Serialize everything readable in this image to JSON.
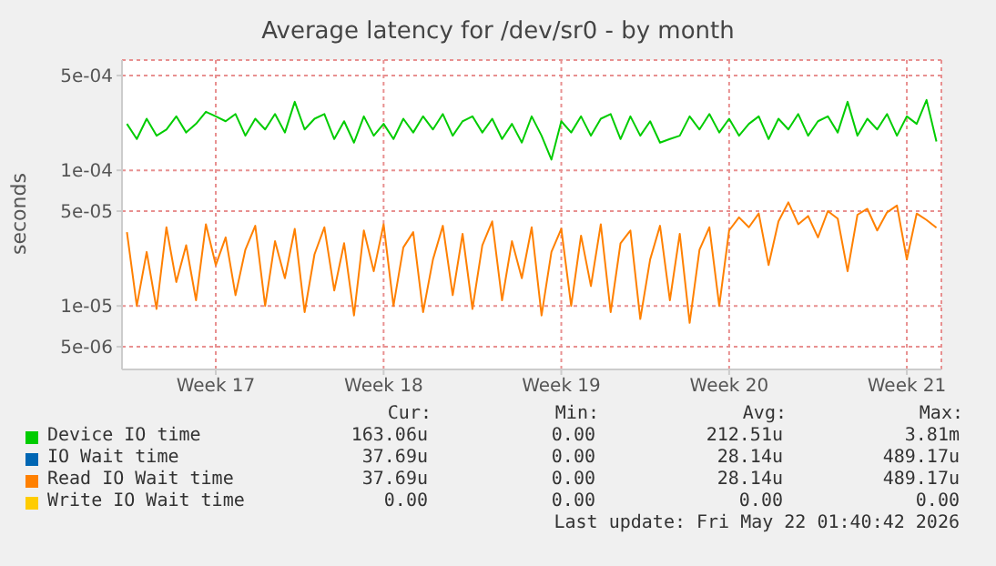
{
  "chart_data": {
    "type": "line",
    "title": "Average latency for /dev/sr0 - by month",
    "ylabel": "seconds",
    "categories": [
      null,
      null,
      null,
      null,
      null,
      null,
      null,
      null,
      null,
      "Week 17",
      null,
      null,
      null,
      null,
      null,
      null,
      null,
      null,
      null,
      null,
      null,
      null,
      null,
      null,
      null,
      null,
      "Week 18",
      null,
      null,
      null,
      null,
      null,
      null,
      null,
      null,
      null,
      null,
      null,
      null,
      null,
      null,
      null,
      null,
      null,
      "Week 19",
      null,
      null,
      null,
      null,
      null,
      null,
      null,
      null,
      null,
      null,
      null,
      null,
      null,
      null,
      null,
      null,
      "Week 20",
      null,
      null,
      null,
      null,
      null,
      null,
      null,
      null,
      null,
      null,
      null,
      null,
      null,
      null,
      null,
      null,
      null,
      "Week 21",
      null,
      null,
      null
    ],
    "series": [
      {
        "name": "Device IO time",
        "color": "#00cc00",
        "values": [
          0.00022,
          0.00017,
          0.00024,
          0.00018,
          0.0002,
          0.00025,
          0.00019,
          0.00022,
          0.00027,
          0.00025,
          0.00023,
          0.00026,
          0.00018,
          0.00024,
          0.0002,
          0.00026,
          0.00019,
          0.00032,
          0.0002,
          0.00024,
          0.00026,
          0.00017,
          0.00023,
          0.00016,
          0.00025,
          0.00018,
          0.00022,
          0.00017,
          0.00024,
          0.00019,
          0.00025,
          0.0002,
          0.00026,
          0.00018,
          0.00023,
          0.00025,
          0.00019,
          0.00024,
          0.00017,
          0.00022,
          0.00016,
          0.00025,
          0.00018,
          0.00012,
          0.00023,
          0.00019,
          0.00025,
          0.00018,
          0.00024,
          0.00026,
          0.00017,
          0.00025,
          0.00018,
          0.00023,
          0.00016,
          0.00017,
          0.00018,
          0.00025,
          0.0002,
          0.00026,
          0.00019,
          0.00024,
          0.00018,
          0.00022,
          0.00025,
          0.00017,
          0.00024,
          0.0002,
          0.00026,
          0.00018,
          0.00023,
          0.00025,
          0.00019,
          0.00032,
          0.00018,
          0.00024,
          0.0002,
          0.00026,
          0.00018,
          0.00025,
          0.00022,
          0.00033,
          0.000163
        ]
      },
      {
        "name": "IO Wait time",
        "color": "#0066b3",
        "values": [
          null,
          null,
          null,
          null,
          null,
          null,
          null,
          null,
          null,
          null,
          null,
          null,
          null,
          null,
          null,
          null,
          null,
          null,
          null,
          null,
          null,
          null,
          null,
          null,
          null,
          null,
          null,
          null,
          null,
          null,
          null,
          null,
          null,
          null,
          null,
          null,
          null,
          null,
          null,
          null,
          null,
          null,
          null,
          null,
          null,
          null,
          null,
          null,
          null,
          null,
          null,
          null,
          null,
          null,
          null,
          null,
          null,
          null,
          null,
          null,
          null,
          null,
          null,
          null,
          null,
          null,
          null,
          null,
          null,
          null,
          null,
          null,
          null,
          null,
          null,
          null,
          null,
          null,
          null,
          null,
          null,
          null,
          null
        ]
      },
      {
        "name": "Read IO Wait time",
        "color": "#ff8000",
        "values": [
          3.5e-05,
          1e-05,
          2.5e-05,
          9.5e-06,
          3.8e-05,
          1.5e-05,
          2.8e-05,
          1.1e-05,
          4e-05,
          2e-05,
          3.2e-05,
          1.2e-05,
          2.6e-05,
          3.9e-05,
          1e-05,
          3e-05,
          1.6e-05,
          3.7e-05,
          9e-06,
          2.4e-05,
          3.8e-05,
          1.3e-05,
          2.9e-05,
          8.5e-06,
          3.6e-05,
          1.8e-05,
          4e-05,
          1e-05,
          2.7e-05,
          3.5e-05,
          9e-06,
          2.2e-05,
          3.9e-05,
          1.2e-05,
          3.4e-05,
          9.5e-06,
          2.8e-05,
          4.2e-05,
          1.1e-05,
          3e-05,
          1.6e-05,
          3.8e-05,
          8.5e-06,
          2.5e-05,
          3.7e-05,
          1e-05,
          3.3e-05,
          1.4e-05,
          4e-05,
          9e-06,
          2.9e-05,
          3.6e-05,
          8e-06,
          2.2e-05,
          3.9e-05,
          1.1e-05,
          3.4e-05,
          7.5e-06,
          2.6e-05,
          3.8e-05,
          1e-05,
          3.6e-05,
          4.5e-05,
          3.8e-05,
          4.8e-05,
          2e-05,
          4.2e-05,
          5.8e-05,
          4e-05,
          4.6e-05,
          3.2e-05,
          5e-05,
          4.4e-05,
          1.8e-05,
          4.7e-05,
          5.2e-05,
          3.6e-05,
          4.9e-05,
          5.5e-05,
          2.2e-05,
          4.8e-05,
          4.3e-05,
          3.77e-05
        ]
      },
      {
        "name": "Write IO Wait time",
        "color": "#ffcc00",
        "values": [
          null,
          null,
          null,
          null,
          null,
          null,
          null,
          null,
          null,
          null,
          null,
          null,
          null,
          null,
          null,
          null,
          null,
          null,
          null,
          null,
          null,
          null,
          null,
          null,
          null,
          null,
          null,
          null,
          null,
          null,
          null,
          null,
          null,
          null,
          null,
          null,
          null,
          null,
          null,
          null,
          null,
          null,
          null,
          null,
          null,
          null,
          null,
          null,
          null,
          null,
          null,
          null,
          null,
          null,
          null,
          null,
          null,
          null,
          null,
          null,
          null,
          null,
          null,
          null,
          null,
          null,
          null,
          null,
          null,
          null,
          null,
          null,
          null,
          null,
          null,
          null,
          null,
          null,
          null,
          null,
          null,
          null,
          null
        ]
      }
    ],
    "log": true,
    "ylim": [
      3.4e-06,
      0.00065
    ],
    "yticks": [
      {
        "value": 5e-06,
        "label": "5e-06"
      },
      {
        "value": 1e-05,
        "label": "1e-05"
      },
      {
        "value": 5e-05,
        "label": "5e-05"
      },
      {
        "value": 0.0001,
        "label": "1e-04"
      },
      {
        "value": 0.0005,
        "label": "5e-04"
      }
    ],
    "grid": true,
    "legend": "bottom",
    "annotations": [
      "Cur:",
      "Min:",
      "Avg:",
      "Max:",
      "163.06u",
      "0.00",
      "212.51u",
      "3.81m",
      "37.69u",
      "0.00",
      "28.14u",
      "489.17u",
      "37.69u",
      "0.00",
      "28.14u",
      "489.17u",
      "0.00",
      "0.00",
      "0.00",
      "0.00",
      "Last update: Fri May 22 01:40:42 2026"
    ]
  }
}
